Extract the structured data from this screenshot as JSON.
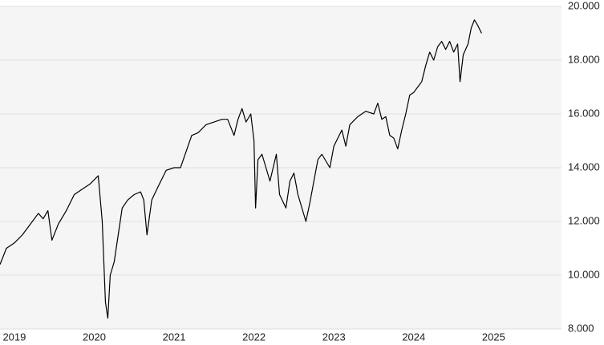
{
  "chart_data": {
    "type": "line",
    "x": [
      2018.82,
      2018.9,
      2019.0,
      2019.1,
      2019.2,
      2019.3,
      2019.36,
      2019.42,
      2019.47,
      2019.55,
      2019.65,
      2019.75,
      2019.85,
      2019.95,
      2020.05,
      2020.1,
      2020.14,
      2020.17,
      2020.2,
      2020.25,
      2020.3,
      2020.35,
      2020.42,
      2020.5,
      2020.58,
      2020.62,
      2020.66,
      2020.72,
      2020.8,
      2020.9,
      2021.0,
      2021.08,
      2021.15,
      2021.22,
      2021.3,
      2021.4,
      2021.5,
      2021.6,
      2021.67,
      2021.75,
      2021.8,
      2021.85,
      2021.9,
      2021.96,
      2022.0,
      2022.02,
      2022.05,
      2022.1,
      2022.15,
      2022.2,
      2022.28,
      2022.32,
      2022.4,
      2022.45,
      2022.5,
      2022.55,
      2022.6,
      2022.65,
      2022.7,
      2022.75,
      2022.8,
      2022.85,
      2022.95,
      2023.0,
      2023.05,
      2023.1,
      2023.15,
      2023.2,
      2023.3,
      2023.4,
      2023.5,
      2023.55,
      2023.6,
      2023.65,
      2023.7,
      2023.75,
      2023.8,
      2023.85,
      2023.9,
      2023.95,
      2024.0,
      2024.05,
      2024.1,
      2024.15,
      2024.2,
      2024.25,
      2024.3,
      2024.35,
      2024.4,
      2024.45,
      2024.5,
      2024.55,
      2024.58,
      2024.62,
      2024.68,
      2024.72,
      2024.76,
      2024.8,
      2024.85
    ],
    "series": [
      {
        "color": "#000000",
        "values": [
          10400,
          11000,
          11200,
          11500,
          11900,
          12300,
          12100,
          12400,
          11300,
          11900,
          12400,
          13000,
          13200,
          13400,
          13700,
          12000,
          9000,
          8400,
          10000,
          10500,
          11500,
          12500,
          12800,
          13000,
          13100,
          12800,
          11500,
          12800,
          13300,
          13900,
          14000,
          14000,
          14600,
          15200,
          15300,
          15600,
          15700,
          15800,
          15800,
          15200,
          15800,
          16200,
          15700,
          16000,
          15000,
          12500,
          14300,
          14500,
          14000,
          13500,
          14500,
          13000,
          12500,
          13500,
          13800,
          13000,
          12500,
          12000,
          12700,
          13500,
          14300,
          14500,
          14000,
          14800,
          15100,
          15400,
          14800,
          15600,
          15900,
          16100,
          16000,
          16400,
          15800,
          15900,
          15200,
          15100,
          14700,
          15400,
          16000,
          16700,
          16800,
          17000,
          17200,
          17800,
          18300,
          18000,
          18500,
          18700,
          18400,
          18700,
          18300,
          18600,
          17200,
          18200,
          18600,
          19200,
          19500,
          19300,
          19000
        ]
      }
    ],
    "xlim": [
      2018.82,
      2025.85
    ],
    "xticks": [
      2019,
      2020,
      2021,
      2022,
      2023,
      2024,
      2025
    ],
    "ylim": [
      8000,
      20000
    ],
    "yticks": [
      {
        "value": 8000,
        "label": "8.000"
      },
      {
        "value": 10000,
        "label": "10.000"
      },
      {
        "value": 12000,
        "label": "12.000"
      },
      {
        "value": 14000,
        "label": "14.000"
      },
      {
        "value": 16000,
        "label": "16.000"
      },
      {
        "value": 18000,
        "label": "18.000"
      },
      {
        "value": 20000,
        "label": "20.000"
      }
    ],
    "grid": true
  }
}
